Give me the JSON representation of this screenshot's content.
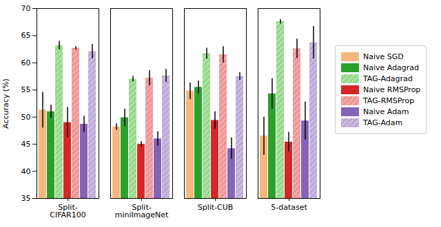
{
  "chart_data": {
    "type": "bar",
    "y_label": "Accuracy (%)",
    "categories": [
      "Split-\nCIFAR100",
      "Split-\nminiImageNet",
      "Split-CUB",
      "5-dataset"
    ],
    "ylim": [
      35,
      70
    ],
    "yticks": [
      35,
      40,
      45,
      50,
      55,
      60,
      65,
      70
    ],
    "grid": false,
    "legend": "right",
    "series": [
      {
        "name": "Naive SGD",
        "color": "#f7b67c",
        "values": [
          51.3,
          48.2,
          54.8,
          46.5
        ],
        "errors": [
          3.3,
          0.6,
          1.5,
          3.5
        ]
      },
      {
        "name": "Naive Adagrad",
        "color": "#2ca02c",
        "values": [
          51.0,
          49.9,
          55.5,
          54.3
        ],
        "errors": [
          1.2,
          1.6,
          1.2,
          2.8
        ]
      },
      {
        "name": "TAG-Adagrad",
        "color": "#a4e39a",
        "values": [
          63.2,
          57.0,
          61.7,
          67.6
        ],
        "errors": [
          0.8,
          0.5,
          1.0,
          0.4
        ],
        "line_style": "hatched"
      },
      {
        "name": "Naive RMSProp",
        "color": "#d62728",
        "values": [
          49.0,
          45.0,
          49.4,
          45.4
        ],
        "errors": [
          2.8,
          0.5,
          1.6,
          1.8
        ]
      },
      {
        "name": "TAG-RMSProp",
        "color": "#f5a3a3",
        "values": [
          62.7,
          57.2,
          61.5,
          62.6
        ],
        "errors": [
          0.3,
          1.4,
          1.5,
          1.8
        ],
        "line_style": "hatched"
      },
      {
        "name": "Naive Adam",
        "color": "#8563b5",
        "values": [
          48.7,
          46.0,
          44.2,
          49.3
        ],
        "errors": [
          1.5,
          1.3,
          2.0,
          3.5
        ]
      },
      {
        "name": "TAG-Adam",
        "color": "#c9b6e2",
        "values": [
          62.1,
          57.6,
          57.5,
          63.7
        ],
        "errors": [
          1.3,
          1.2,
          0.7,
          3.0
        ],
        "line_style": "hatched"
      }
    ]
  }
}
